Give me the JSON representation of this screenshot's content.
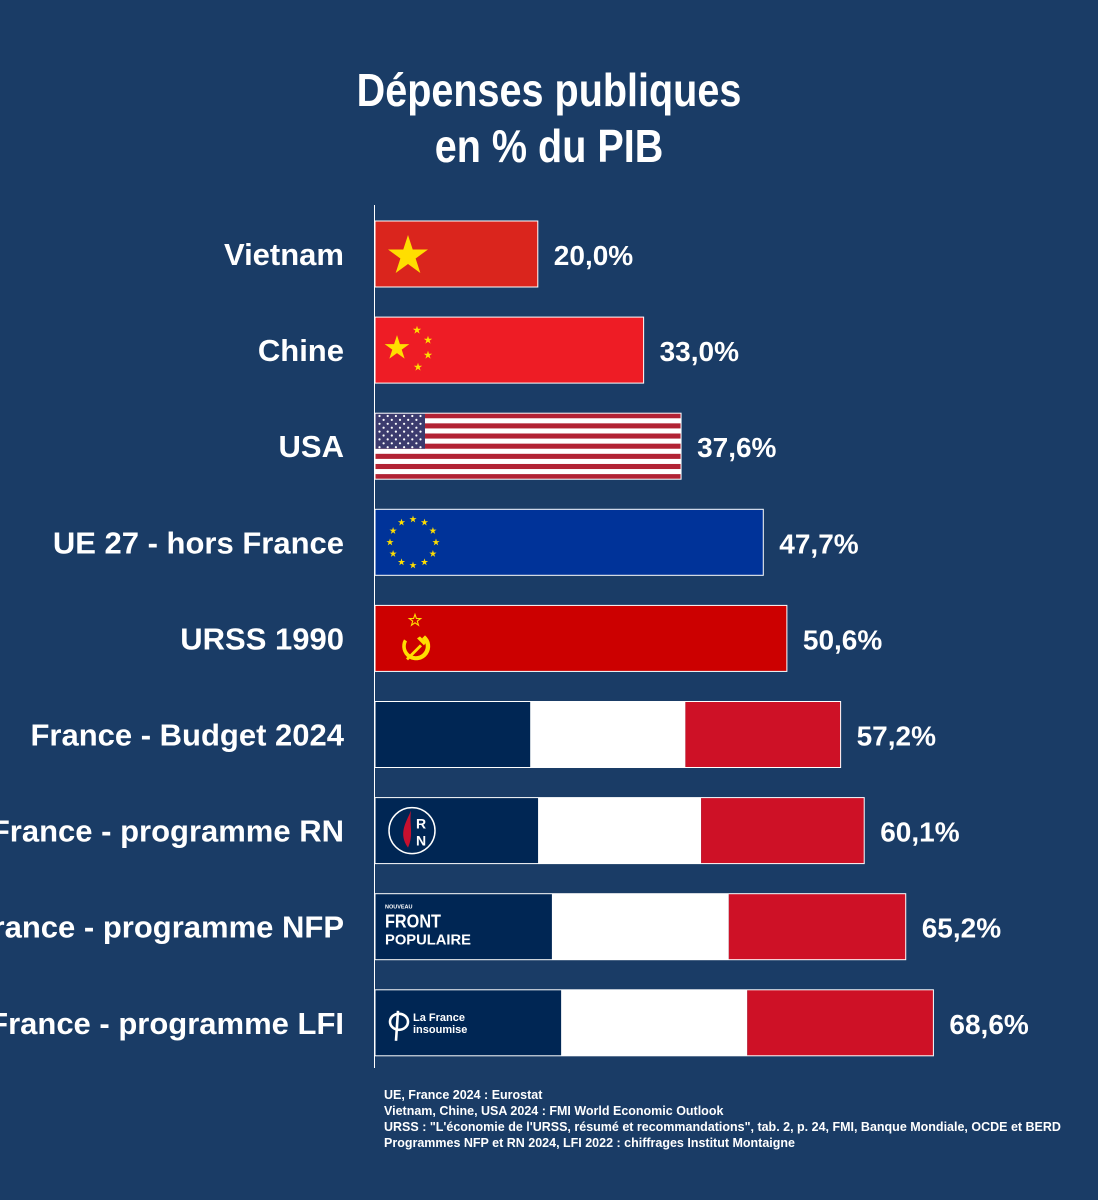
{
  "title_line1": "Dépenses publiques",
  "title_line2": "en % du PIB",
  "chart_data": {
    "type": "bar",
    "orientation": "horizontal",
    "title": "Dépenses publiques en % du PIB",
    "categories": [
      "Vietnam",
      "Chine",
      "USA",
      "UE 27 - hors France",
      "URSS 1990",
      "France - Budget 2024",
      "France - programme RN",
      "France - programme NFP",
      "France - programme LFI"
    ],
    "values": [
      20.0,
      33.0,
      37.6,
      47.7,
      50.6,
      57.2,
      60.1,
      65.2,
      68.6
    ],
    "value_labels": [
      "20,0%",
      "33,0%",
      "37,6%",
      "47,7%",
      "50,6%",
      "57,2%",
      "60,1%",
      "65,2%",
      "68,6%"
    ],
    "fills": [
      "vietnam-flag",
      "china-flag",
      "usa-flag",
      "eu-flag",
      "ussr-flag",
      "france-flag",
      "france-flag-rn-logo",
      "france-flag-nfp-logo",
      "france-flag-lfi-logo"
    ],
    "unit": "% du PIB",
    "grid": false,
    "legend": "none"
  },
  "logos": {
    "rn": "RN",
    "nfp_line1": "NOUVEAU",
    "nfp_line2": "FRONT",
    "nfp_line3": "POPULAIRE",
    "lfi_line1": "La France",
    "lfi_line2": "insoumise"
  },
  "sources": [
    "UE, France 2024 : Eurostat",
    "Vietnam, Chine, USA 2024 : FMI World Economic Outlook",
    "URSS : \"L'économie de l'URSS, résumé et recommandations\", tab. 2, p. 24, FMI, Banque Mondiale, OCDE et BERD",
    "Programmes NFP et RN 2024, LFI 2022 : chiffrages Institut Montaigne"
  ],
  "colors": {
    "background": "#1a3c66",
    "vietnam_red": "#da251d",
    "china_red": "#ee1c25",
    "star_yellow": "#ffde00",
    "usa_red": "#b22234",
    "usa_blue": "#3c3b6e",
    "eu_blue": "#003399",
    "ussr_red": "#cc0000",
    "france_blue": "#002654",
    "france_white": "#ffffff",
    "france_red": "#ce1126"
  }
}
